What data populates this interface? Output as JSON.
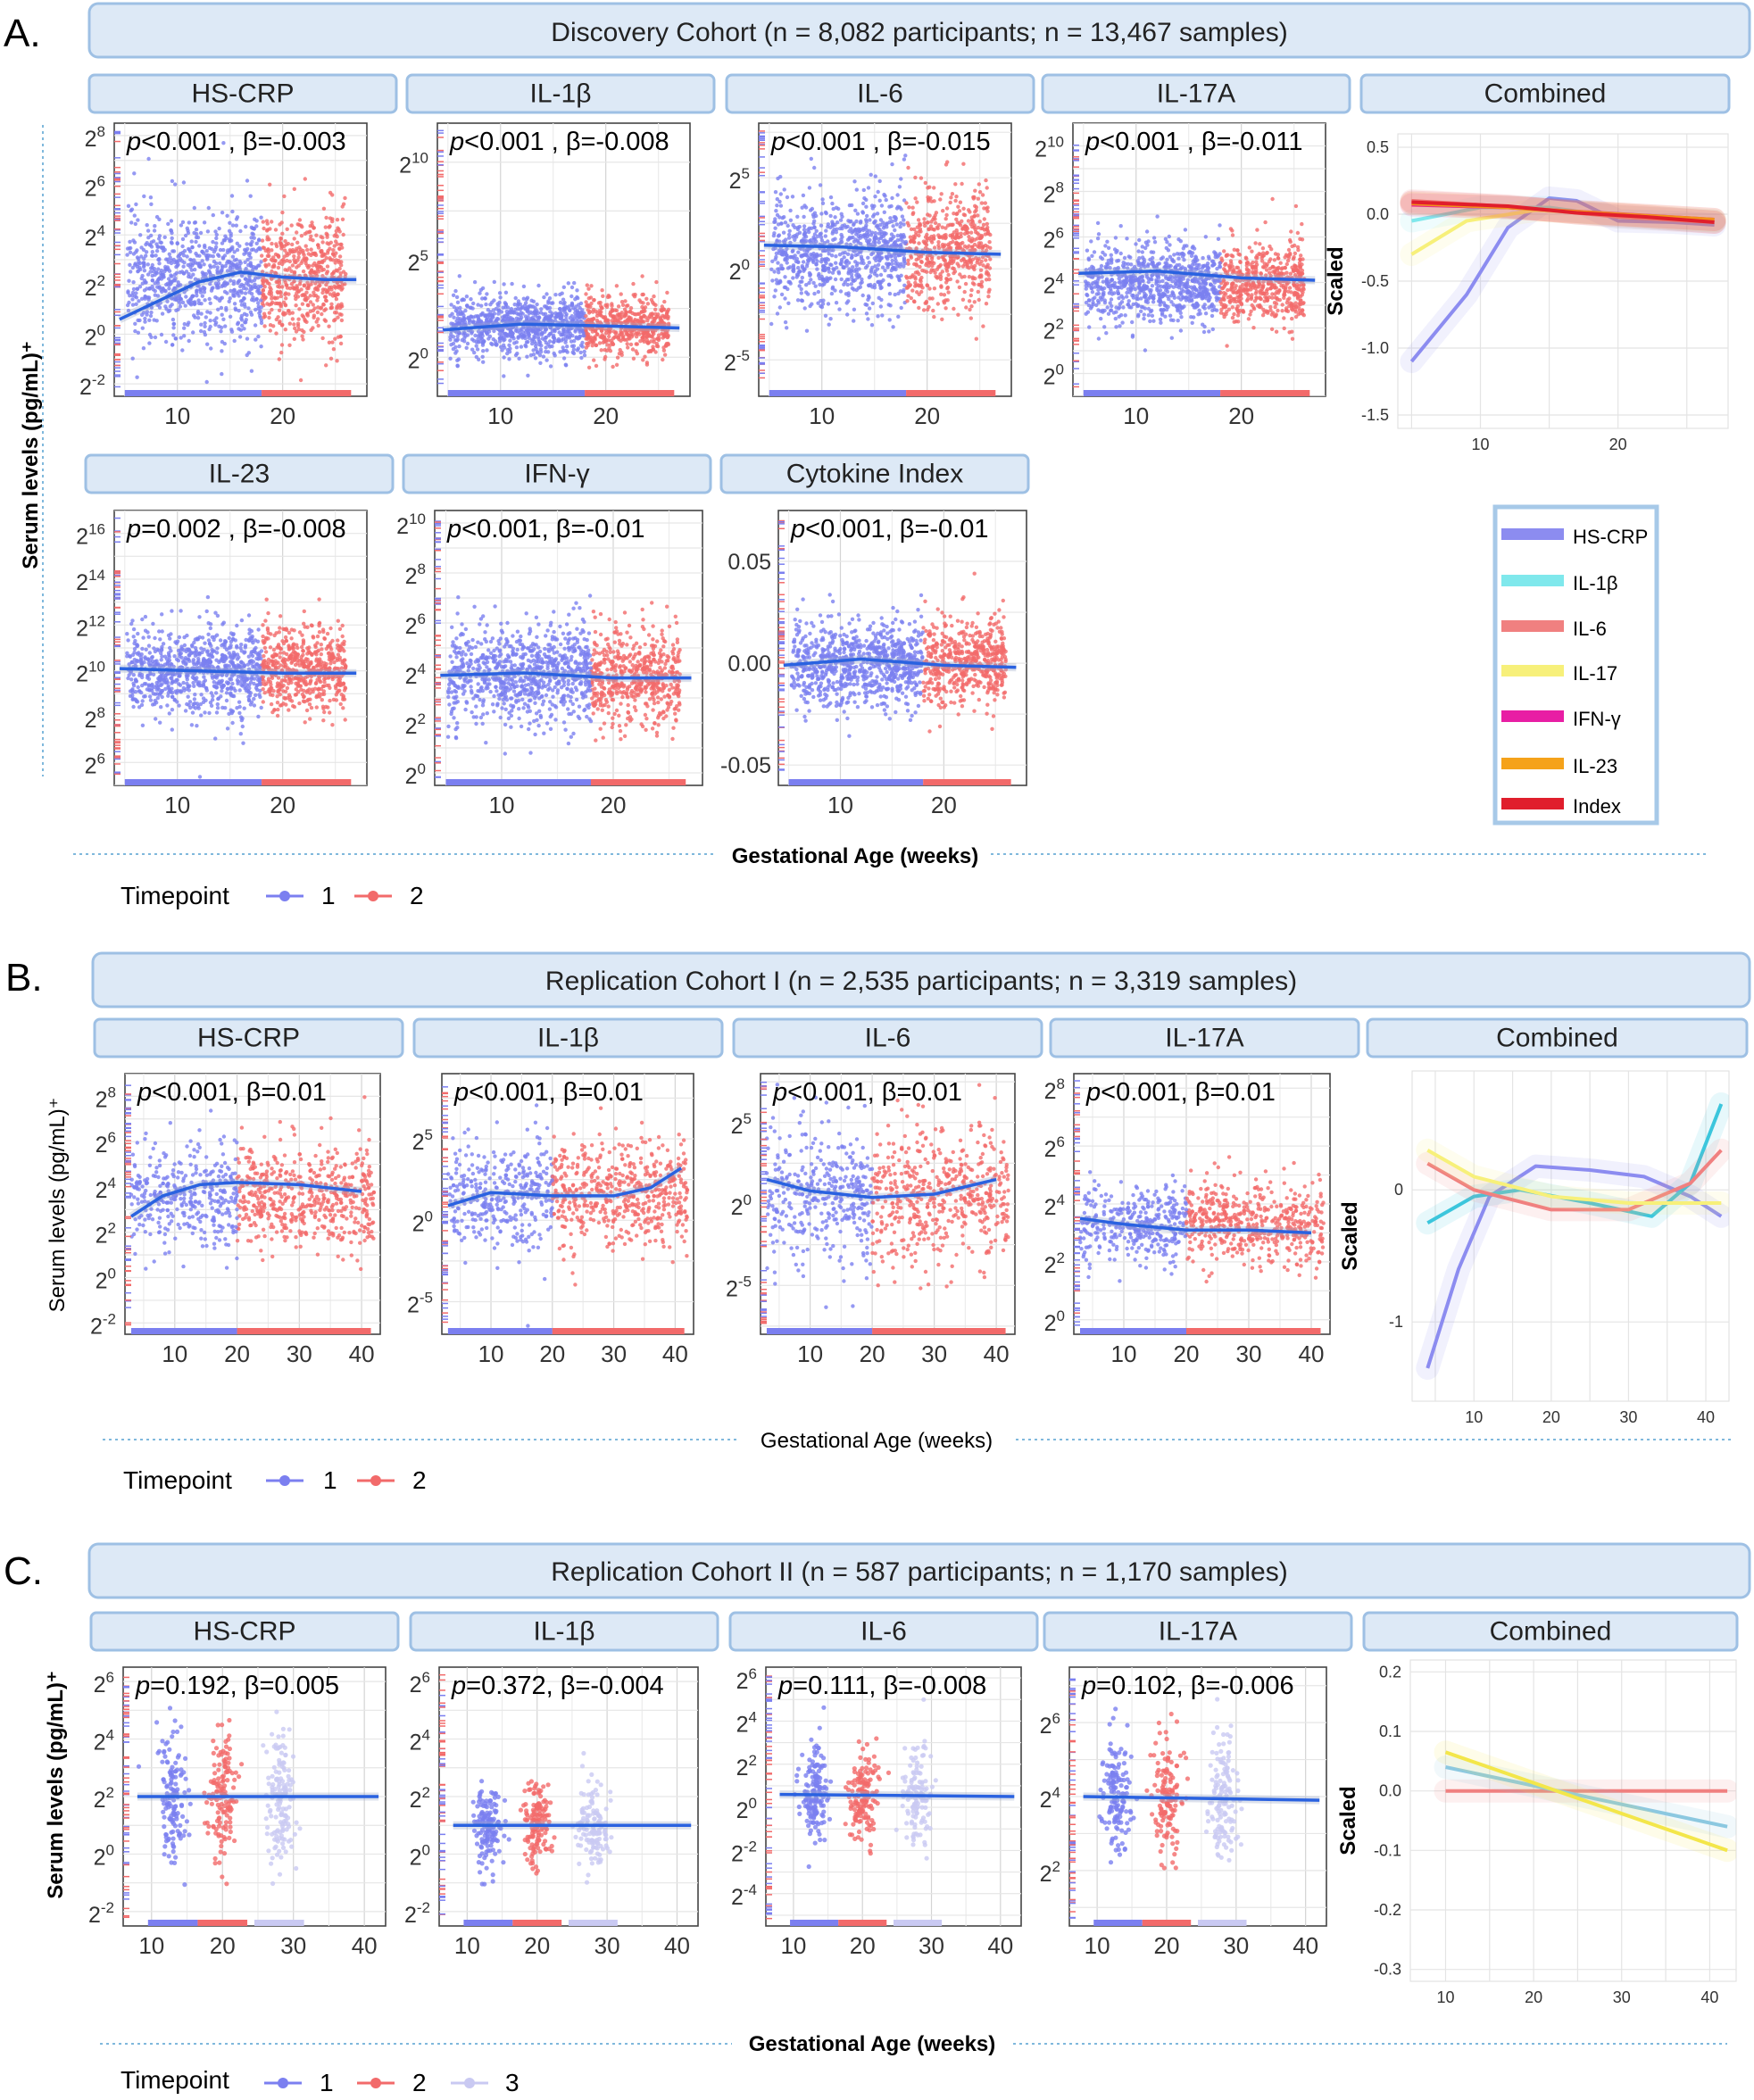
{
  "colors": {
    "tp1": "#7b7ff0",
    "tp2": "#f26a6a",
    "tp3": "#c9c9f2",
    "trend": "#2a62e0",
    "banner_fill": "#dde9f6",
    "banner_stroke": "#9ec0e4"
  },
  "chart_data": [
    {
      "panel": "A",
      "type": "scatter",
      "cohort_title": "Discovery Cohort (n = 8,082 participants; n = 13,467 samples)",
      "ylabel": "Serum levels (pg/mL)⁺",
      "xlabel": "Gestational Age (weeks)",
      "legend": {
        "title": "Timepoint",
        "entries": [
          "1",
          "2"
        ]
      },
      "xlim": [
        4,
        28
      ],
      "xticks": [
        10,
        20
      ],
      "split_at": 18,
      "subplots": [
        {
          "name": "HS-CRP",
          "annotation": "p<0.001 , β=-0.003",
          "ylim": [
            -2.5,
            8.5
          ],
          "yticks": [
            8,
            6,
            4,
            2,
            0,
            -2
          ],
          "center": 2.3,
          "spread": 1.5,
          "trend": [
            [
              4.5,
              0.6
            ],
            [
              8,
              1.3
            ],
            [
              12,
              2.1
            ],
            [
              16,
              2.5
            ],
            [
              20,
              2.3
            ],
            [
              24,
              2.2
            ],
            [
              27,
              2.2
            ]
          ]
        },
        {
          "name": "IL-1β",
          "annotation": "p<0.001 , β=-0.008",
          "ylim": [
            -2,
            12
          ],
          "yticks": [
            10,
            5,
            0
          ],
          "center": 1.6,
          "spread": 0.9,
          "trend": [
            [
              4.5,
              1.4
            ],
            [
              12,
              1.7
            ],
            [
              20,
              1.6
            ],
            [
              27,
              1.5
            ]
          ]
        },
        {
          "name": "IL-6",
          "annotation": "p<0.001 , β=-0.015",
          "ylim": [
            -7,
            8
          ],
          "yticks": [
            5,
            0,
            -5
          ],
          "center": 1.0,
          "spread": 1.8,
          "trend": [
            [
              4.5,
              1.3
            ],
            [
              12,
              1.2
            ],
            [
              20,
              0.9
            ],
            [
              27,
              0.8
            ]
          ]
        },
        {
          "name": "IL-17A",
          "annotation": "p<0.001 , β=-0.011",
          "ylim": [
            -1,
            11
          ],
          "yticks": [
            10,
            8,
            6,
            4,
            2,
            0
          ],
          "center": 4.0,
          "spread": 1.0,
          "trend": [
            [
              4.5,
              4.4
            ],
            [
              12,
              4.5
            ],
            [
              20,
              4.2
            ],
            [
              27,
              4.1
            ]
          ]
        },
        {
          "name": "IL-23",
          "annotation": "p=0.002 , β=-0.008",
          "ylim": [
            5,
            17
          ],
          "yticks": [
            16,
            14,
            12,
            10,
            8,
            6
          ],
          "center": 10.0,
          "spread": 1.1,
          "trend": [
            [
              4.5,
              10.1
            ],
            [
              12,
              10.0
            ],
            [
              20,
              9.9
            ],
            [
              27,
              9.9
            ]
          ]
        },
        {
          "name": "IFN-γ",
          "annotation": "p<0.001, β=-0.01",
          "ylim": [
            -0.5,
            10.5
          ],
          "yticks": [
            10,
            8,
            6,
            4,
            2,
            0
          ],
          "center": 3.9,
          "spread": 1.1,
          "trend": [
            [
              4.5,
              3.9
            ],
            [
              12,
              4.0
            ],
            [
              20,
              3.8
            ],
            [
              27,
              3.8
            ]
          ]
        },
        {
          "name": "Cytokine Index",
          "annotation": "p<0.001, β=-0.01",
          "ylim": [
            -0.06,
            0.075
          ],
          "yticks": [
            0.05,
            0.0,
            -0.05
          ],
          "ytick_labels": [
            "0.05",
            "0.00",
            "-0.05"
          ],
          "center": 0.0,
          "spread": 0.012,
          "trend": [
            [
              4.5,
              -0.001
            ],
            [
              12,
              0.002
            ],
            [
              20,
              -0.001
            ],
            [
              27,
              -0.002
            ]
          ]
        }
      ],
      "combined": {
        "title": "Combined",
        "ylabel": "Scaled",
        "ylim": [
          -1.6,
          0.6
        ],
        "yticks": [
          0.5,
          0.0,
          -0.5,
          -1.0,
          -1.5
        ],
        "ytick_labels": [
          "0.5",
          "0.0",
          "-0.5",
          "-1.0",
          "-1.5"
        ],
        "xticks": [
          10,
          20
        ],
        "series": [
          {
            "name": "HS-CRP",
            "color": "#8c8cf0",
            "points": [
              [
                5,
                -1.1
              ],
              [
                9,
                -0.6
              ],
              [
                12,
                -0.1
              ],
              [
                15,
                0.12
              ],
              [
                17,
                0.1
              ],
              [
                20,
                -0.05
              ],
              [
                24,
                -0.06
              ],
              [
                27,
                -0.08
              ]
            ]
          },
          {
            "name": "IL-1β",
            "color": "#7fe8ec",
            "points": [
              [
                5,
                -0.05
              ],
              [
                10,
                0.05
              ],
              [
                15,
                0.05
              ],
              [
                20,
                -0.02
              ],
              [
                27,
                -0.05
              ]
            ]
          },
          {
            "name": "IL-6",
            "color": "#f08080",
            "points": [
              [
                5,
                0.1
              ],
              [
                10,
                0.07
              ],
              [
                15,
                0.03
              ],
              [
                20,
                -0.02
              ],
              [
                27,
                -0.06
              ]
            ]
          },
          {
            "name": "IL-17",
            "color": "#f7f07a",
            "points": [
              [
                5,
                -0.3
              ],
              [
                9,
                -0.05
              ],
              [
                14,
                0.03
              ],
              [
                20,
                0.0
              ],
              [
                27,
                -0.05
              ]
            ]
          },
          {
            "name": "IFN-γ",
            "color": "#e81ea4",
            "points": [
              [
                5,
                0.07
              ],
              [
                12,
                0.05
              ],
              [
                17,
                0.02
              ],
              [
                22,
                -0.01
              ],
              [
                27,
                -0.04
              ]
            ]
          },
          {
            "name": "IL-23",
            "color": "#f5a21a",
            "points": [
              [
                5,
                0.08
              ],
              [
                12,
                0.05
              ],
              [
                20,
                0.0
              ],
              [
                27,
                -0.04
              ]
            ]
          },
          {
            "name": "Index",
            "color": "#e01e2c",
            "points": [
              [
                5,
                0.09
              ],
              [
                12,
                0.06
              ],
              [
                17,
                0.01
              ],
              [
                22,
                -0.02
              ],
              [
                27,
                -0.06
              ]
            ]
          }
        ],
        "legend_entries": [
          "HS-CRP",
          "IL-1β",
          "IL-6",
          "IL-17",
          "IFN-γ",
          "IL-23",
          "Index"
        ]
      }
    },
    {
      "panel": "B",
      "type": "scatter",
      "cohort_title": "Replication Cohort I (n = 2,535 participants; n = 3,319 samples)",
      "ylabel": "Serum levels (pg/mL)⁺",
      "xlabel": "Gestational Age (weeks)",
      "legend": {
        "title": "Timepoint",
        "entries": [
          "1",
          "2"
        ]
      },
      "xlim": [
        2,
        43
      ],
      "xticks": [
        10,
        20,
        30,
        40
      ],
      "split_at": 20,
      "subplots": [
        {
          "name": "HS-CRP",
          "annotation": "p<0.001, β=0.01",
          "ylim": [
            -2.5,
            9
          ],
          "yticks": [
            8,
            6,
            4,
            2,
            0,
            -2
          ],
          "center": 3.6,
          "spread": 1.3,
          "trend": [
            [
              3,
              2.7
            ],
            [
              8,
              3.6
            ],
            [
              14,
              4.1
            ],
            [
              20,
              4.2
            ],
            [
              30,
              4.1
            ],
            [
              40,
              3.8
            ]
          ]
        },
        {
          "name": "IL-1β",
          "annotation": "p<0.001, β=0.01",
          "ylim": [
            -7,
            9
          ],
          "yticks": [
            5,
            0,
            -5
          ],
          "center": 1.5,
          "spread": 1.9,
          "trend": [
            [
              3,
              0.9
            ],
            [
              10,
              1.7
            ],
            [
              20,
              1.5
            ],
            [
              30,
              1.5
            ],
            [
              36,
              2.0
            ],
            [
              41,
              3.2
            ]
          ]
        },
        {
          "name": "IL-6",
          "annotation": "p<0.001, β=0.01",
          "ylim": [
            -8,
            8
          ],
          "yticks": [
            5,
            0,
            -5
          ],
          "center": 0.5,
          "spread": 2.4,
          "trend": [
            [
              3,
              1.5
            ],
            [
              10,
              0.8
            ],
            [
              20,
              0.4
            ],
            [
              30,
              0.6
            ],
            [
              40,
              1.5
            ]
          ]
        },
        {
          "name": "IL-17A",
          "annotation": "p<0.001, β=0.01",
          "ylim": [
            -0.5,
            8.5
          ],
          "yticks": [
            8,
            6,
            4,
            2,
            0
          ],
          "center": 3.3,
          "spread": 0.8,
          "trend": [
            [
              3,
              3.5
            ],
            [
              10,
              3.3
            ],
            [
              20,
              3.1
            ],
            [
              30,
              3.1
            ],
            [
              40,
              3.0
            ]
          ]
        }
      ],
      "combined": {
        "title": "Combined",
        "ylabel": "Scaled",
        "ylim": [
          -1.6,
          0.9
        ],
        "yticks": [
          0,
          -1
        ],
        "ytick_labels": [
          "0",
          "-1"
        ],
        "xticks": [
          10,
          20,
          30,
          40
        ],
        "series": [
          {
            "name": "HS-CRP",
            "color": "#8c8cf0",
            "points": [
              [
                4,
                -1.35
              ],
              [
                8,
                -0.6
              ],
              [
                12,
                -0.05
              ],
              [
                18,
                0.18
              ],
              [
                25,
                0.15
              ],
              [
                32,
                0.1
              ],
              [
                38,
                -0.05
              ],
              [
                42,
                -0.2
              ]
            ]
          },
          {
            "name": "IL-1β",
            "color": "#3cc6dc",
            "points": [
              [
                4,
                -0.25
              ],
              [
                10,
                -0.05
              ],
              [
                16,
                0.0
              ],
              [
                25,
                -0.1
              ],
              [
                33,
                -0.2
              ],
              [
                38,
                0.05
              ],
              [
                42,
                0.65
              ]
            ]
          },
          {
            "name": "IL-6",
            "color": "#f08080",
            "points": [
              [
                4,
                0.2
              ],
              [
                10,
                0.0
              ],
              [
                20,
                -0.15
              ],
              [
                30,
                -0.15
              ],
              [
                38,
                0.05
              ],
              [
                42,
                0.3
              ]
            ]
          },
          {
            "name": "IL-17",
            "color": "#f7f07a",
            "points": [
              [
                4,
                0.3
              ],
              [
                10,
                0.1
              ],
              [
                20,
                -0.05
              ],
              [
                30,
                -0.1
              ],
              [
                42,
                -0.1
              ]
            ]
          }
        ]
      }
    },
    {
      "panel": "C",
      "type": "scatter",
      "cohort_title": "Replication Cohort II (n = 587 participants; n = 1,170 samples)",
      "ylabel": "Serum levels (pg/mL)⁺",
      "xlabel": "Gestational Age (weeks)",
      "legend": {
        "title": "Timepoint",
        "entries": [
          "1",
          "2",
          "3"
        ]
      },
      "xlim": [
        6,
        43
      ],
      "xticks": [
        10,
        20,
        30,
        40
      ],
      "clusters": [
        13,
        20,
        28
      ],
      "subplots": [
        {
          "name": "HS-CRP",
          "annotation": "p=0.192, β=0.005",
          "ylim": [
            -2.5,
            6.5
          ],
          "yticks": [
            6,
            4,
            2,
            0,
            -2
          ],
          "center": 2.0,
          "spread": 1.3,
          "trend": [
            [
              8,
              2.0
            ],
            [
              42,
              2.0
            ]
          ]
        },
        {
          "name": "IL-1β",
          "annotation": "p=0.372, β=-0.004",
          "ylim": [
            -2.5,
            6.5
          ],
          "yticks": [
            6,
            4,
            2,
            0,
            -2
          ],
          "center": 1.0,
          "spread": 0.9,
          "trend": [
            [
              8,
              1.0
            ],
            [
              42,
              1.0
            ]
          ]
        },
        {
          "name": "IL-6",
          "annotation": "p=0.111, β=-0.008",
          "ylim": [
            -5.5,
            6.5
          ],
          "yticks": [
            6,
            4,
            2,
            0,
            -2,
            -4
          ],
          "center": 0.6,
          "spread": 1.2,
          "trend": [
            [
              8,
              0.6
            ],
            [
              42,
              0.5
            ]
          ]
        },
        {
          "name": "IL-17A",
          "annotation": "p=0.102, β=-0.006",
          "ylim": [
            0.5,
            7.5
          ],
          "yticks": [
            6,
            4,
            2
          ],
          "center": 4.0,
          "spread": 0.9,
          "trend": [
            [
              8,
              4.0
            ],
            [
              42,
              3.9
            ]
          ]
        }
      ],
      "combined": {
        "title": "Combined",
        "ylabel": "Scaled",
        "ylim": [
          -0.32,
          0.22
        ],
        "yticks": [
          0.2,
          0.1,
          0.0,
          -0.1,
          -0.2,
          -0.3
        ],
        "ytick_labels": [
          "0.2",
          "0.1",
          "0.0",
          "-0.1",
          "-0.2",
          "-0.3"
        ],
        "xticks": [
          10,
          20,
          30,
          40
        ],
        "series": [
          {
            "name": "IL-6",
            "color": "#f08080",
            "points": [
              [
                10,
                0.0
              ],
              [
                42,
                0.0
              ]
            ]
          },
          {
            "name": "IL-1β",
            "color": "#8cc8e0",
            "points": [
              [
                10,
                0.04
              ],
              [
                42,
                -0.06
              ]
            ]
          },
          {
            "name": "IL-17",
            "color": "#f3e64a",
            "points": [
              [
                10,
                0.065
              ],
              [
                42,
                -0.1
              ]
            ]
          }
        ]
      }
    }
  ],
  "panel_labels": {
    "A": "A.",
    "B": "B.",
    "C": "C."
  }
}
